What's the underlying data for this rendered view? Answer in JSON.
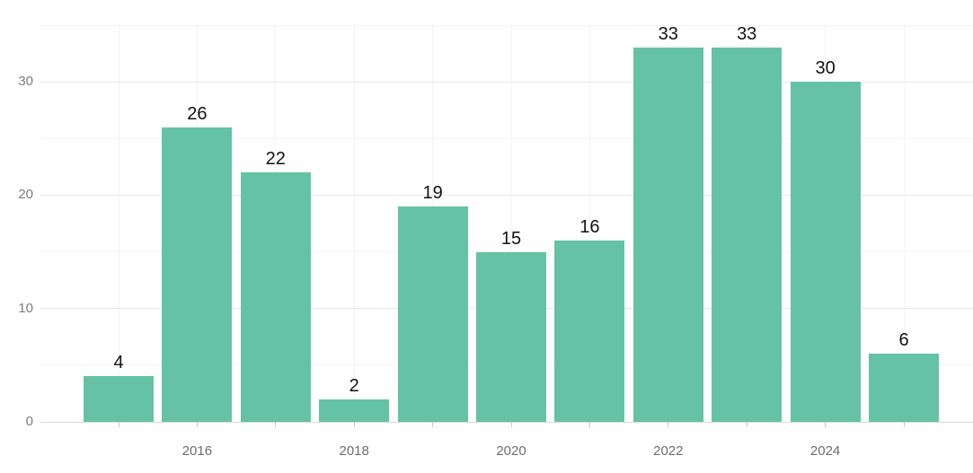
{
  "chart_data": {
    "type": "bar",
    "title": "",
    "xlabel": "",
    "ylabel": "",
    "legend": "none",
    "grid": "major-and-minor",
    "x": [
      2015,
      2016,
      2017,
      2018,
      2019,
      2020,
      2021,
      2022,
      2023,
      2024,
      2025
    ],
    "values": [
      4,
      26,
      22,
      2,
      19,
      15,
      16,
      33,
      33,
      30,
      6
    ],
    "bar_value_labels": [
      "4",
      "26",
      "22",
      "2",
      "19",
      "15",
      "16",
      "33",
      "33",
      "30",
      "6"
    ],
    "x_axis": {
      "labeled_ticks": [
        "2016",
        "2018",
        "2020",
        "2022",
        "2024"
      ],
      "labeled_tick_years": [
        2016,
        2018,
        2020,
        2022,
        2024
      ],
      "tick_marks_at_every_year": true
    },
    "y_axis": {
      "major_ticks": [
        0,
        10,
        20,
        30
      ],
      "major_tick_labels": [
        "0",
        "10",
        "20",
        "30"
      ],
      "minor_gridlines": [
        5,
        15,
        25,
        35
      ],
      "range": [
        0,
        35
      ]
    },
    "style": {
      "bar_color": "#66c2a5",
      "background_color": "#ffffff",
      "grid_major_color": "#e7e7e7",
      "grid_minor_color": "#f4f4f4",
      "axis_line_color": "#d9d9d9",
      "tick_mark_color": "#c9c9c9",
      "value_label_color": "#121212",
      "x_label_color": "#6d6d6d",
      "y_label_color": "#7d7d7d"
    }
  }
}
